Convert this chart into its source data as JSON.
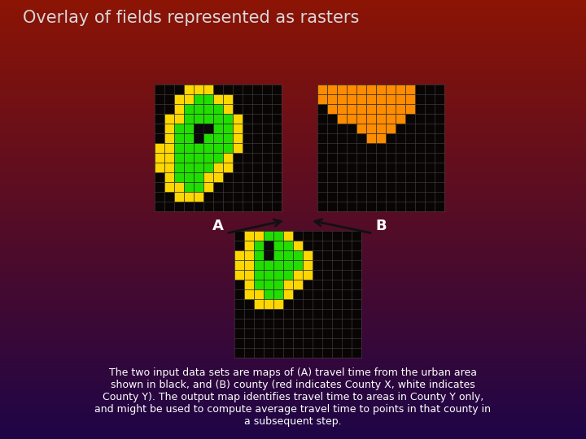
{
  "title": "Overlay of fields represented as rasters",
  "title_color": "#d8d8d8",
  "text_body": "The two input data sets are maps of (A) travel time from the urban area\nshown in black, and (B) county (red indicates County X, white indicates\nCounty Y). The output map identifies travel time to areas in County Y only,\nand might be used to compute average travel time to points in that county in\na subsequent step.",
  "label_A": "A",
  "label_B": "B",
  "yellow": "#FFD700",
  "green": "#22DD00",
  "black_cell": "#0a0a0a",
  "orange": "#FF8C00",
  "empty_cell": "#000000",
  "grid_line": "#333333",
  "grid_cols": 13,
  "grid_rows": 13,
  "cell_size": 12,
  "raster_A": [
    [
      0,
      0,
      0,
      1,
      1,
      1,
      0,
      0,
      0,
      0,
      0,
      0,
      0
    ],
    [
      0,
      0,
      1,
      1,
      2,
      2,
      1,
      1,
      0,
      0,
      0,
      0,
      0
    ],
    [
      0,
      0,
      1,
      2,
      2,
      2,
      2,
      1,
      0,
      0,
      0,
      0,
      0
    ],
    [
      0,
      1,
      1,
      2,
      2,
      2,
      2,
      2,
      1,
      0,
      0,
      0,
      0
    ],
    [
      0,
      1,
      2,
      2,
      3,
      3,
      2,
      2,
      1,
      0,
      0,
      0,
      0
    ],
    [
      0,
      1,
      2,
      2,
      3,
      2,
      2,
      2,
      1,
      0,
      0,
      0,
      0
    ],
    [
      1,
      1,
      2,
      2,
      2,
      2,
      2,
      2,
      1,
      0,
      0,
      0,
      0
    ],
    [
      1,
      1,
      2,
      2,
      2,
      2,
      2,
      1,
      0,
      0,
      0,
      0,
      0
    ],
    [
      1,
      1,
      2,
      2,
      2,
      2,
      1,
      1,
      0,
      0,
      0,
      0,
      0
    ],
    [
      0,
      1,
      2,
      2,
      2,
      1,
      1,
      0,
      0,
      0,
      0,
      0,
      0
    ],
    [
      0,
      1,
      1,
      2,
      2,
      1,
      0,
      0,
      0,
      0,
      0,
      0,
      0
    ],
    [
      0,
      0,
      1,
      1,
      1,
      0,
      0,
      0,
      0,
      0,
      0,
      0,
      0
    ],
    [
      0,
      0,
      0,
      0,
      0,
      0,
      0,
      0,
      0,
      0,
      0,
      0,
      0
    ]
  ],
  "raster_B": [
    [
      4,
      4,
      4,
      4,
      4,
      4,
      4,
      4,
      4,
      4,
      0,
      0,
      0
    ],
    [
      4,
      4,
      4,
      4,
      4,
      4,
      4,
      4,
      4,
      4,
      0,
      0,
      0
    ],
    [
      0,
      4,
      4,
      4,
      4,
      4,
      4,
      4,
      4,
      4,
      0,
      0,
      0
    ],
    [
      0,
      0,
      4,
      4,
      4,
      4,
      4,
      4,
      4,
      0,
      0,
      0,
      0
    ],
    [
      0,
      0,
      0,
      0,
      4,
      4,
      4,
      4,
      0,
      0,
      0,
      0,
      0
    ],
    [
      0,
      0,
      0,
      0,
      0,
      4,
      4,
      0,
      0,
      0,
      0,
      0,
      0
    ],
    [
      0,
      0,
      0,
      0,
      0,
      0,
      0,
      0,
      0,
      0,
      0,
      0,
      0
    ],
    [
      0,
      0,
      0,
      0,
      0,
      0,
      0,
      0,
      0,
      0,
      0,
      0,
      0
    ],
    [
      0,
      0,
      0,
      0,
      0,
      0,
      0,
      0,
      0,
      0,
      0,
      0,
      0
    ],
    [
      0,
      0,
      0,
      0,
      0,
      0,
      0,
      0,
      0,
      0,
      0,
      0,
      0
    ],
    [
      0,
      0,
      0,
      0,
      0,
      0,
      0,
      0,
      0,
      0,
      0,
      0,
      0
    ],
    [
      0,
      0,
      0,
      0,
      0,
      0,
      0,
      0,
      0,
      0,
      0,
      0,
      0
    ],
    [
      0,
      0,
      0,
      0,
      0,
      0,
      0,
      0,
      0,
      0,
      0,
      0,
      0
    ]
  ],
  "raster_C": [
    [
      0,
      1,
      1,
      2,
      2,
      1,
      0,
      0,
      0,
      0,
      0,
      0,
      0
    ],
    [
      0,
      1,
      2,
      3,
      2,
      2,
      1,
      0,
      0,
      0,
      0,
      0,
      0
    ],
    [
      1,
      1,
      2,
      3,
      2,
      2,
      2,
      1,
      0,
      0,
      0,
      0,
      0
    ],
    [
      1,
      1,
      2,
      2,
      2,
      2,
      2,
      1,
      0,
      0,
      0,
      0,
      0
    ],
    [
      1,
      1,
      2,
      2,
      2,
      2,
      1,
      1,
      0,
      0,
      0,
      0,
      0
    ],
    [
      0,
      1,
      2,
      2,
      2,
      1,
      1,
      0,
      0,
      0,
      0,
      0,
      0
    ],
    [
      0,
      1,
      1,
      2,
      2,
      1,
      0,
      0,
      0,
      0,
      0,
      0,
      0
    ],
    [
      0,
      0,
      1,
      1,
      1,
      0,
      0,
      0,
      0,
      0,
      0,
      0,
      0
    ],
    [
      0,
      0,
      0,
      0,
      0,
      0,
      0,
      0,
      0,
      0,
      0,
      0,
      0
    ],
    [
      0,
      0,
      0,
      0,
      0,
      0,
      0,
      0,
      0,
      0,
      0,
      0,
      0
    ],
    [
      0,
      0,
      0,
      0,
      0,
      0,
      0,
      0,
      0,
      0,
      0,
      0,
      0
    ],
    [
      0,
      0,
      0,
      0,
      0,
      0,
      0,
      0,
      0,
      0,
      0,
      0,
      0
    ],
    [
      0,
      0,
      0,
      0,
      0,
      0,
      0,
      0,
      0,
      0,
      0,
      0,
      0
    ]
  ]
}
